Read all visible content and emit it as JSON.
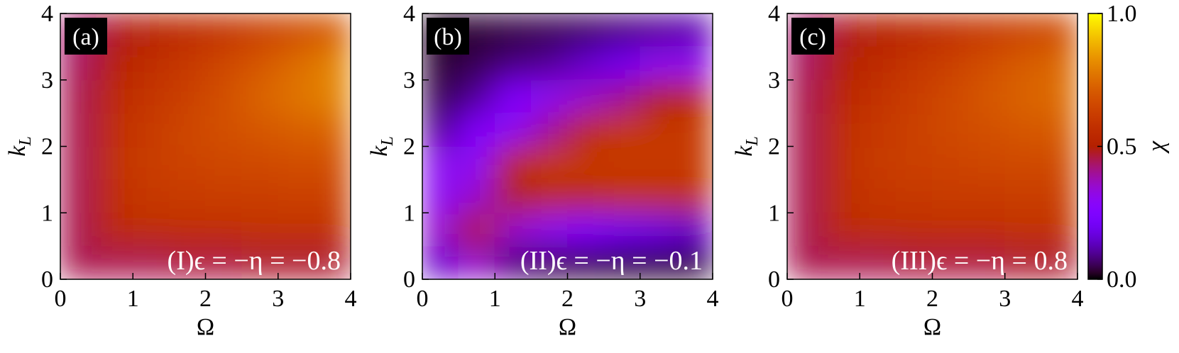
{
  "chart_data": [
    {
      "type": "heatmap",
      "panel_label": "(a)",
      "annotation": "(I)ϵ = −η = −0.8",
      "x_label": "Ω",
      "y_label": [
        "k",
        "L"
      ],
      "xlim": [
        0,
        4
      ],
      "ylim": [
        0,
        4
      ],
      "xticks": [
        0,
        1,
        2,
        3,
        4
      ],
      "yticks": [
        0,
        1,
        2,
        3,
        4
      ],
      "colormap": "gnuplot",
      "clim": [
        0,
        1
      ],
      "z": [
        [
          0.45,
          0.45,
          0.45,
          0.46,
          0.46,
          0.47,
          0.47,
          0.47
        ],
        [
          0.45,
          0.55,
          0.56,
          0.57,
          0.57,
          0.58,
          0.58,
          0.58
        ],
        [
          0.45,
          0.57,
          0.6,
          0.61,
          0.62,
          0.62,
          0.63,
          0.63
        ],
        [
          0.45,
          0.58,
          0.62,
          0.64,
          0.65,
          0.66,
          0.67,
          0.67
        ],
        [
          0.45,
          0.57,
          0.61,
          0.65,
          0.68,
          0.7,
          0.72,
          0.73
        ],
        [
          0.45,
          0.55,
          0.59,
          0.63,
          0.68,
          0.73,
          0.77,
          0.8
        ],
        [
          0.44,
          0.52,
          0.56,
          0.6,
          0.65,
          0.7,
          0.75,
          0.8
        ],
        [
          0.43,
          0.48,
          0.52,
          0.55,
          0.58,
          0.62,
          0.66,
          0.7
        ]
      ]
    },
    {
      "type": "heatmap",
      "panel_label": "(b)",
      "annotation": "(II)ϵ = −η = −0.1",
      "x_label": "Ω",
      "y_label": [
        "k",
        "L"
      ],
      "xlim": [
        0,
        4
      ],
      "ylim": [
        0,
        4
      ],
      "xticks": [
        0,
        1,
        2,
        3,
        4
      ],
      "yticks": [
        0,
        1,
        2,
        3,
        4
      ],
      "colormap": "gnuplot",
      "clim": [
        0,
        1
      ],
      "z": [
        [
          0.15,
          0.35,
          0.08,
          0.05,
          0.04,
          0.03,
          0.03,
          0.03
        ],
        [
          0.35,
          0.5,
          0.35,
          0.3,
          0.25,
          0.2,
          0.18,
          0.15
        ],
        [
          0.3,
          0.35,
          0.5,
          0.55,
          0.55,
          0.58,
          0.58,
          0.58
        ],
        [
          0.3,
          0.3,
          0.55,
          0.6,
          0.6,
          0.6,
          0.6,
          0.6
        ],
        [
          0.1,
          0.25,
          0.3,
          0.4,
          0.55,
          0.6,
          0.6,
          0.6
        ],
        [
          0.05,
          0.1,
          0.25,
          0.3,
          0.35,
          0.4,
          0.5,
          0.55
        ],
        [
          0.03,
          0.05,
          0.08,
          0.1,
          0.15,
          0.2,
          0.3,
          0.3
        ],
        [
          0.02,
          0.03,
          0.04,
          0.05,
          0.06,
          0.08,
          0.1,
          0.12
        ]
      ]
    },
    {
      "type": "heatmap",
      "panel_label": "(c)",
      "annotation": "(III)ϵ = −η = 0.8",
      "x_label": "Ω",
      "y_label": [
        "k",
        "L"
      ],
      "xlim": [
        0,
        4
      ],
      "ylim": [
        0,
        4
      ],
      "xticks": [
        0,
        1,
        2,
        3,
        4
      ],
      "yticks": [
        0,
        1,
        2,
        3,
        4
      ],
      "colormap": "gnuplot",
      "clim": [
        0,
        1
      ],
      "colorbar_label": "χ",
      "cticks": [
        {
          "value": 0,
          "label": "0.0"
        },
        {
          "value": 0.5,
          "label": "0.5"
        },
        {
          "value": 1,
          "label": "1.0"
        }
      ],
      "z": [
        [
          0.45,
          0.45,
          0.45,
          0.46,
          0.46,
          0.46,
          0.47,
          0.47
        ],
        [
          0.45,
          0.55,
          0.56,
          0.56,
          0.57,
          0.57,
          0.58,
          0.58
        ],
        [
          0.45,
          0.56,
          0.59,
          0.6,
          0.61,
          0.61,
          0.62,
          0.62
        ],
        [
          0.45,
          0.57,
          0.61,
          0.63,
          0.64,
          0.65,
          0.66,
          0.66
        ],
        [
          0.45,
          0.56,
          0.6,
          0.63,
          0.66,
          0.68,
          0.7,
          0.71
        ],
        [
          0.45,
          0.54,
          0.58,
          0.62,
          0.66,
          0.7,
          0.73,
          0.75
        ],
        [
          0.44,
          0.51,
          0.55,
          0.59,
          0.63,
          0.67,
          0.71,
          0.74
        ],
        [
          0.43,
          0.48,
          0.51,
          0.54,
          0.57,
          0.6,
          0.63,
          0.66
        ]
      ]
    }
  ]
}
